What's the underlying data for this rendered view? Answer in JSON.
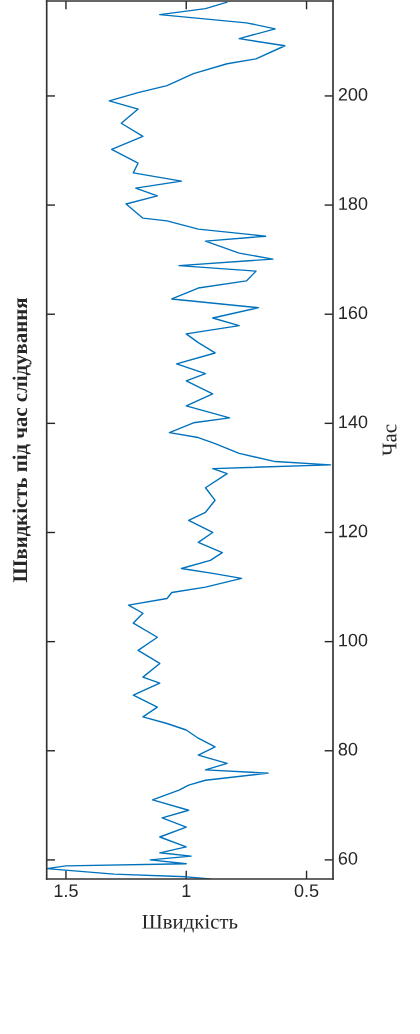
{
  "chart_data": {
    "type": "line",
    "title": "Швидкість під час слідування",
    "xlabel": "Швидкість",
    "ylabel": "Час",
    "ylim": [
      56.5,
      217.4
    ],
    "yticks": [
      60,
      80,
      100,
      120,
      140,
      160,
      180,
      200
    ],
    "xlim": [
      1.58,
      0.39
    ],
    "xticks": [
      1.5,
      1,
      0.5
    ],
    "grid": false,
    "series": [
      {
        "color": "#0072bd",
        "values": [
          56.5,
          56.9,
          57.4,
          58.4,
          58.9,
          59.3,
          60,
          60.7,
          61.3,
          62.4,
          64.2,
          66,
          67.7,
          69.1,
          71,
          72.8,
          73.7,
          74.6,
          75.9,
          76.5,
          77.7,
          79.2,
          80.7,
          82.3,
          83.8,
          85,
          86.2,
          88,
          90.2,
          92.4,
          93.5,
          96,
          98.4,
          100.8,
          103.4,
          105.2,
          106.7,
          107.9,
          109,
          110,
          111.6,
          112.5,
          113.4,
          114.9,
          116.3,
          118.2,
          120,
          122.2,
          123.7,
          125.9,
          128.2,
          130.8,
          131.7,
          132.4,
          133,
          134.5,
          136.3,
          137.4,
          138.3,
          140.1,
          141,
          143.2,
          145.4,
          147.8,
          149.1,
          150.9,
          152.9,
          154.8,
          156.4,
          157.9,
          159.3,
          161.2,
          162.8,
          164.8,
          166.1,
          167.9,
          168.9,
          170.1,
          171.2,
          173.4,
          174.3,
          175.6,
          177.1,
          177.6,
          180.2,
          181.7,
          183.1,
          184.4,
          185.9,
          187.7,
          190.2,
          192.6,
          195,
          197.6,
          199.1,
          200.6,
          201.9,
          204.1,
          205.9,
          206.8,
          209.2,
          210.5,
          212.3,
          213.4,
          214.9,
          216,
          217.2
        ],
        "x": [
          0.9,
          1.0,
          1.3,
          1.58,
          1.5,
          1.0,
          1.15,
          0.98,
          1.11,
          1.0,
          1.11,
          1.0,
          1.1,
          0.99,
          1.14,
          1.03,
          0.99,
          0.92,
          0.66,
          0.92,
          0.83,
          0.95,
          0.88,
          0.95,
          1.0,
          1.08,
          1.18,
          1.12,
          1.22,
          1.11,
          1.18,
          1.11,
          1.2,
          1.12,
          1.22,
          1.18,
          1.24,
          1.08,
          1.06,
          0.92,
          0.77,
          0.89,
          1.02,
          0.9,
          0.85,
          0.95,
          0.89,
          0.99,
          0.92,
          0.88,
          0.92,
          0.83,
          0.89,
          0.4,
          0.63,
          0.78,
          0.88,
          0.95,
          1.07,
          0.97,
          0.82,
          1.0,
          0.89,
          1.0,
          0.92,
          1.04,
          0.88,
          0.95,
          1.0,
          0.78,
          0.89,
          0.7,
          1.06,
          0.95,
          0.75,
          0.71,
          1.03,
          0.64,
          0.78,
          0.92,
          0.67,
          0.95,
          1.08,
          1.18,
          1.25,
          1.12,
          1.21,
          1.02,
          1.22,
          1.2,
          1.31,
          1.18,
          1.27,
          1.2,
          1.32,
          1.2,
          1.08,
          0.97,
          0.83,
          0.71,
          0.59,
          0.78,
          0.63,
          0.75,
          1.11,
          0.92,
          0.83
        ]
      }
    ]
  }
}
